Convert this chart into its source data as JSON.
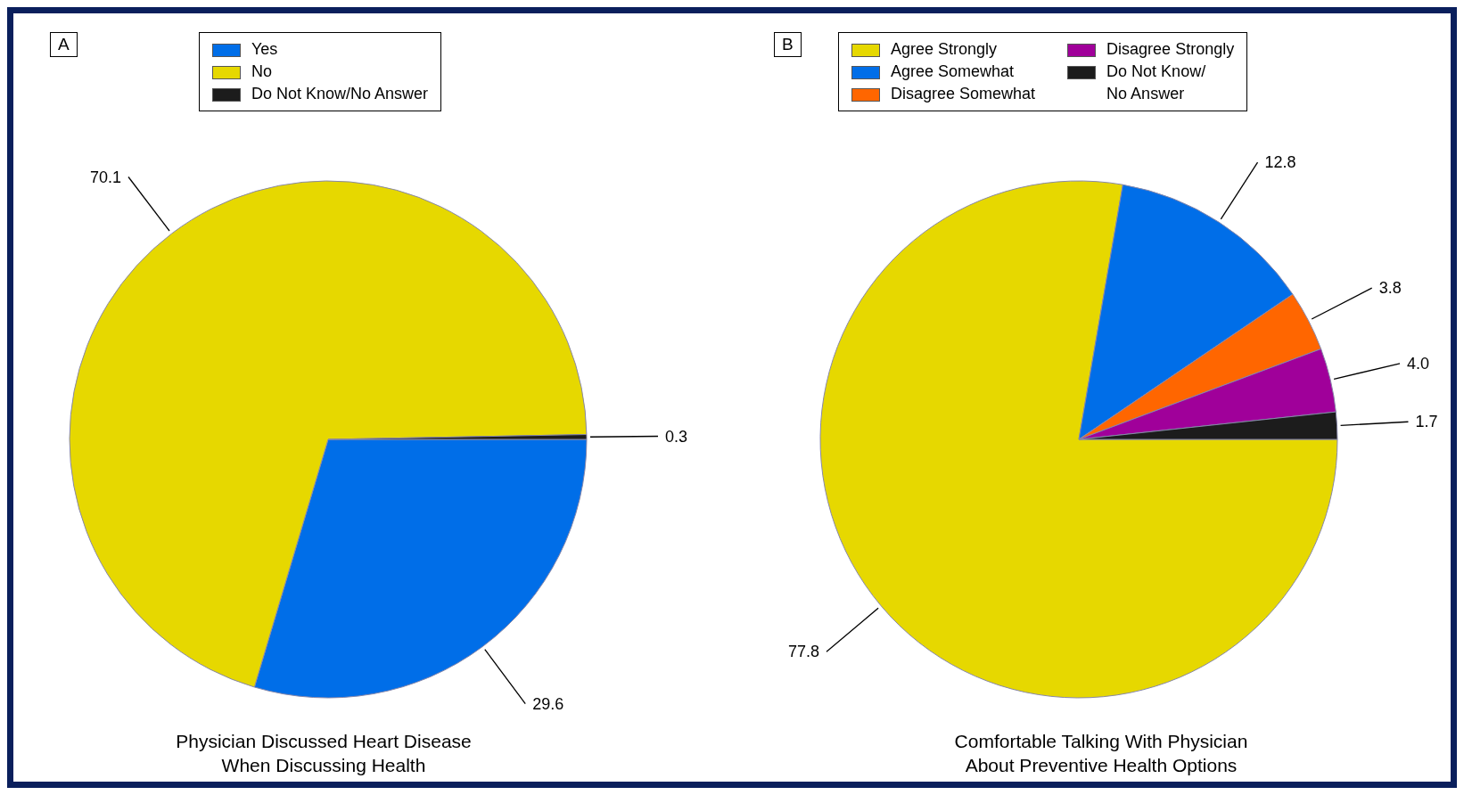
{
  "chart_data": [
    {
      "type": "pie",
      "title": "Physician Discussed Heart Disease\nWhen Discussing Health",
      "annotations": [
        "A"
      ],
      "categories": [
        "Yes",
        "No",
        "Do Not Know/No Answer"
      ],
      "values": [
        29.6,
        70.1,
        0.3
      ],
      "colors": [
        "#006ee8",
        "#e6d800",
        "#1c1c1c"
      ],
      "data_labels": true,
      "legend": "top"
    },
    {
      "type": "pie",
      "title": "Comfortable Talking With Physician\nAbout Preventive Health Options",
      "annotations": [
        "B"
      ],
      "categories": [
        "Agree Strongly",
        "Agree Somewhat",
        "Disagree Somewhat",
        "Disagree Strongly",
        "Do Not Know/\nNo Answer"
      ],
      "values": [
        77.8,
        12.8,
        3.8,
        4.0,
        1.7
      ],
      "value_labels": [
        "77.8",
        "12.8",
        "3.8",
        "4.0",
        "1.7"
      ],
      "colors": [
        "#e6d800",
        "#006ee8",
        "#ff6600",
        "#a0009a",
        "#1c1c1c"
      ],
      "legend": "top"
    }
  ]
}
